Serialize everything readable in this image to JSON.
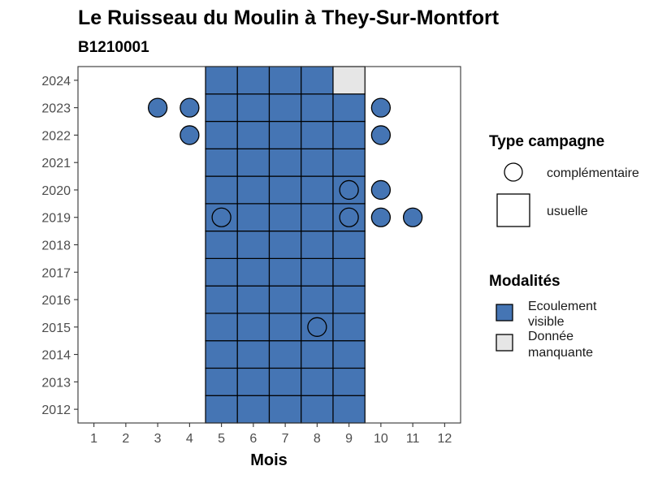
{
  "chart_data": {
    "type": "heatmap",
    "title": "Le Ruisseau du Moulin à They-Sur-Montfort",
    "subtitle": "B1210001",
    "xlabel": "Mois",
    "ylabel": "",
    "x_ticks": [
      1,
      2,
      3,
      4,
      5,
      6,
      7,
      8,
      9,
      10,
      11,
      12
    ],
    "y_ticks": [
      2012,
      2013,
      2014,
      2015,
      2016,
      2017,
      2018,
      2019,
      2020,
      2021,
      2022,
      2023,
      2024
    ],
    "xlim": [
      0.5,
      12.5
    ],
    "ylim": [
      2011.5,
      2024.5
    ],
    "grid": false,
    "colors": {
      "Ecoulement visible": "#4575b4",
      "Donnée manquante": "#e6e6e6"
    },
    "usuelle": [
      {
        "year": 2012,
        "months": [
          5,
          6,
          7,
          8,
          9
        ],
        "modalite": "Ecoulement visible"
      },
      {
        "year": 2013,
        "months": [
          5,
          6,
          7,
          8,
          9
        ],
        "modalite": "Ecoulement visible"
      },
      {
        "year": 2014,
        "months": [
          5,
          6,
          7,
          8,
          9
        ],
        "modalite": "Ecoulement visible"
      },
      {
        "year": 2015,
        "months": [
          5,
          6,
          7,
          8,
          9
        ],
        "modalite": "Ecoulement visible"
      },
      {
        "year": 2016,
        "months": [
          5,
          6,
          7,
          8,
          9
        ],
        "modalite": "Ecoulement visible"
      },
      {
        "year": 2017,
        "months": [
          5,
          6,
          7,
          8,
          9
        ],
        "modalite": "Ecoulement visible"
      },
      {
        "year": 2018,
        "months": [
          5,
          6,
          7,
          8,
          9
        ],
        "modalite": "Ecoulement visible"
      },
      {
        "year": 2019,
        "months": [
          5,
          6,
          7,
          8,
          9
        ],
        "modalite": "Ecoulement visible"
      },
      {
        "year": 2020,
        "months": [
          5,
          6,
          7,
          8,
          9
        ],
        "modalite": "Ecoulement visible"
      },
      {
        "year": 2021,
        "months": [
          5,
          6,
          7,
          8,
          9
        ],
        "modalite": "Ecoulement visible"
      },
      {
        "year": 2022,
        "months": [
          5,
          6,
          7,
          8,
          9
        ],
        "modalite": "Ecoulement visible"
      },
      {
        "year": 2023,
        "months": [
          5,
          6,
          7,
          8,
          9
        ],
        "modalite": "Ecoulement visible"
      },
      {
        "year": 2024,
        "months": [
          5,
          6,
          7,
          8
        ],
        "modalite": "Ecoulement visible"
      },
      {
        "year": 2024,
        "months": [
          9
        ],
        "modalite": "Donnée manquante"
      }
    ],
    "complementaire": [
      {
        "year": 2023,
        "month": 3,
        "modalite": "Ecoulement visible"
      },
      {
        "year": 2023,
        "month": 4,
        "modalite": "Ecoulement visible"
      },
      {
        "year": 2023,
        "month": 10,
        "modalite": "Ecoulement visible"
      },
      {
        "year": 2022,
        "month": 4,
        "modalite": "Ecoulement visible"
      },
      {
        "year": 2022,
        "month": 10,
        "modalite": "Ecoulement visible"
      },
      {
        "year": 2020,
        "month": 9,
        "modalite": "Ecoulement visible"
      },
      {
        "year": 2020,
        "month": 10,
        "modalite": "Ecoulement visible"
      },
      {
        "year": 2019,
        "month": 5,
        "modalite": "Ecoulement visible"
      },
      {
        "year": 2019,
        "month": 9,
        "modalite": "Ecoulement visible"
      },
      {
        "year": 2019,
        "month": 10,
        "modalite": "Ecoulement visible"
      },
      {
        "year": 2019,
        "month": 11,
        "modalite": "Ecoulement visible"
      },
      {
        "year": 2015,
        "month": 8,
        "modalite": "Ecoulement visible"
      }
    ],
    "legend": {
      "placement": "right",
      "type_title": "Type campagne",
      "type_entries": [
        "complémentaire",
        "usuelle"
      ],
      "modalites_title": "Modalités",
      "modalites_entries": [
        {
          "label_lines": [
            "Ecoulement",
            "visible"
          ],
          "color": "#4575b4"
        },
        {
          "label_lines": [
            "Donnée",
            "manquante"
          ],
          "color": "#e6e6e6"
        }
      ]
    }
  }
}
